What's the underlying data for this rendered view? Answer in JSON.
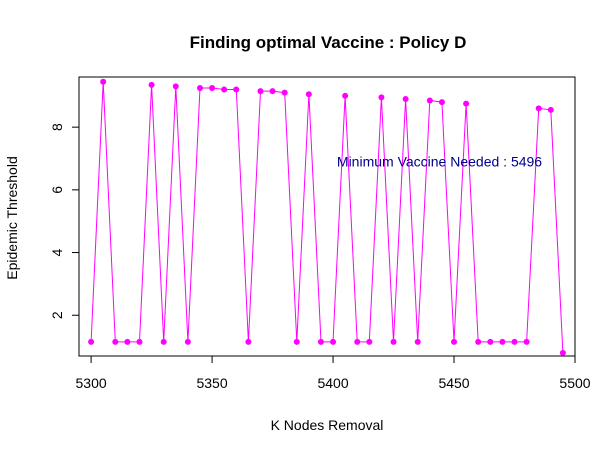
{
  "chart_data": {
    "type": "line",
    "title": "Finding optimal Vaccine : Policy  D",
    "xlabel": "K Nodes Removal",
    "ylabel": "Epidemic Threshold",
    "xlim": [
      5295,
      5500
    ],
    "ylim": [
      0.7,
      9.6
    ],
    "x_ticks": [
      5300,
      5350,
      5400,
      5450,
      5500
    ],
    "y_ticks": [
      2,
      4,
      6,
      8
    ],
    "grid": false,
    "line_color": "#ff00ff",
    "point_color": "#ff00ff",
    "annotation": {
      "text": "Minimum Vaccine Needed :  5496",
      "color": "#00008b",
      "x": 5444,
      "y": 6.9
    },
    "series": [
      {
        "x": [
          5300,
          5305,
          5310,
          5315,
          5320,
          5325,
          5330,
          5335,
          5340,
          5345,
          5350,
          5355,
          5360,
          5365,
          5370,
          5375,
          5380,
          5385,
          5390,
          5395,
          5400,
          5405,
          5410,
          5415,
          5420,
          5425,
          5430,
          5435,
          5440,
          5445,
          5450,
          5455,
          5460,
          5465,
          5470,
          5475,
          5480,
          5485,
          5490,
          5495
        ],
        "y": [
          1.15,
          9.45,
          1.15,
          1.15,
          1.15,
          9.35,
          1.15,
          9.3,
          1.15,
          9.25,
          9.25,
          9.2,
          9.2,
          1.15,
          9.15,
          9.15,
          9.1,
          1.15,
          9.05,
          1.15,
          1.15,
          9.0,
          1.15,
          1.15,
          8.95,
          1.15,
          8.9,
          1.15,
          8.85,
          8.8,
          1.15,
          8.75,
          1.15,
          1.15,
          1.15,
          1.15,
          1.15,
          8.6,
          8.55,
          0.8
        ]
      }
    ]
  }
}
